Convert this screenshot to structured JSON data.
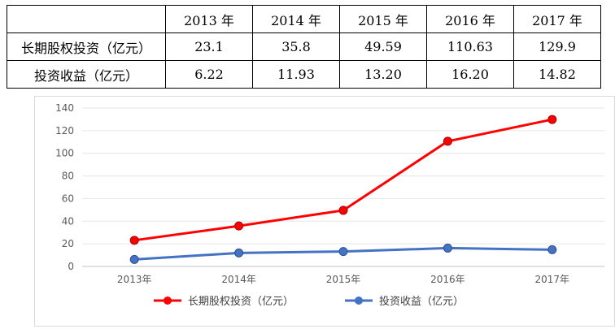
{
  "table": {
    "header": [
      "",
      "2013 年",
      "2014 年",
      "2015 年",
      "2016 年",
      "2017 年"
    ],
    "rows": [
      {
        "label": "长期股权投资（亿元）",
        "values": [
          "23.1",
          "35.8",
          "49.59",
          "110.63",
          "129.9"
        ]
      },
      {
        "label": "投资收益（亿元）",
        "values": [
          "6.22",
          "11.93",
          "13.20",
          "16.20",
          "14.82"
        ]
      }
    ]
  },
  "chart_data": {
    "type": "line",
    "categories": [
      "2013年",
      "2014年",
      "2015年",
      "2016年",
      "2017年"
    ],
    "series": [
      {
        "name": "长期股权投资（亿元）",
        "values": [
          23.1,
          35.8,
          49.59,
          110.63,
          129.9
        ],
        "color": "#ff0000"
      },
      {
        "name": "投资收益（亿元）",
        "values": [
          6.22,
          11.93,
          13.2,
          16.2,
          14.82
        ],
        "color": "#4472c4"
      }
    ],
    "ylim": [
      0,
      140
    ],
    "yticks": [
      0,
      20,
      40,
      60,
      80,
      100,
      120,
      140
    ],
    "grid": true,
    "legend": "bottom"
  }
}
